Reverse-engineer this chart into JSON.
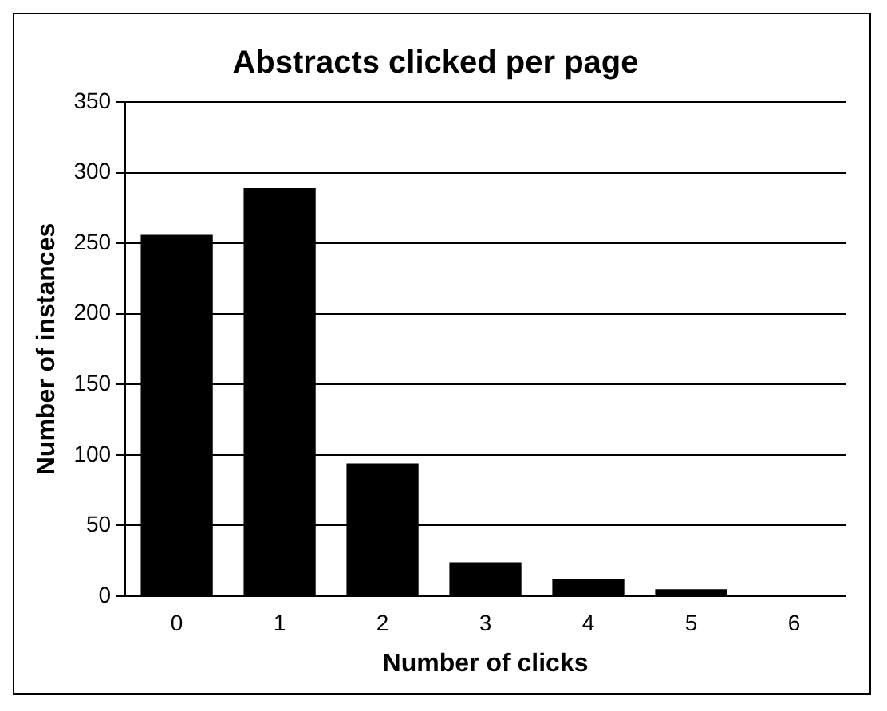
{
  "chart_data": {
    "type": "bar",
    "title": "Abstracts clicked per page",
    "xlabel": "Number of clicks",
    "ylabel": "Number of instances",
    "categories": [
      "0",
      "1",
      "2",
      "3",
      "4",
      "5",
      "6"
    ],
    "values": [
      256,
      289,
      94,
      24,
      12,
      5,
      0
    ],
    "color": "#000000",
    "ylim": [
      0,
      350
    ],
    "yticks": [
      0,
      50,
      100,
      150,
      200,
      250,
      300,
      350
    ],
    "grid": "y"
  }
}
